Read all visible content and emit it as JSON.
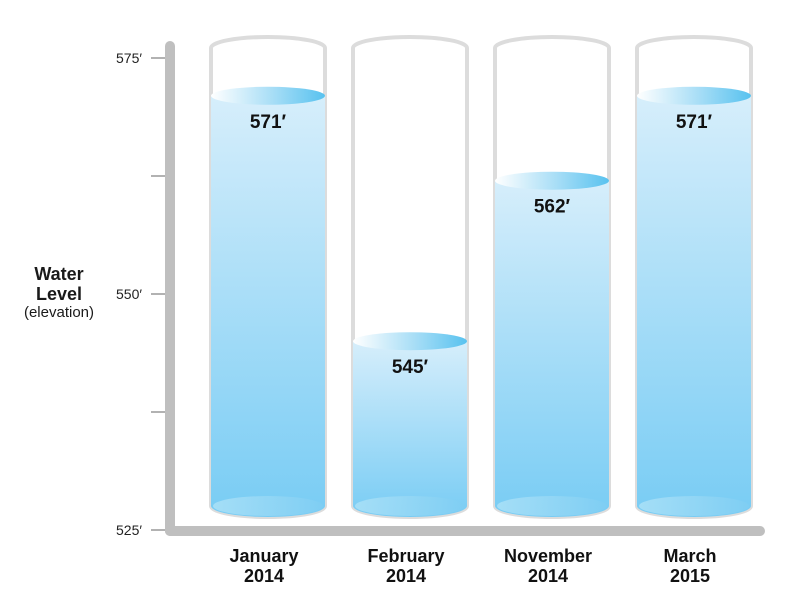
{
  "chart_data": {
    "type": "bar",
    "style": "water-filled cylinders",
    "ylabel": "Water Level",
    "ylabel_sub": "(elevation)",
    "ylim": [
      525,
      575
    ],
    "y_ticks": [
      {
        "value": 525,
        "label": "525′"
      },
      {
        "value": 537.5,
        "label": ""
      },
      {
        "value": 550,
        "label": "550′"
      },
      {
        "value": 562.5,
        "label": ""
      },
      {
        "value": 575,
        "label": "575′"
      }
    ],
    "categories": [
      {
        "line1": "January",
        "line2": "2014"
      },
      {
        "line1": "February",
        "line2": "2014"
      },
      {
        "line1": "November",
        "line2": "2014"
      },
      {
        "line1": "March",
        "line2": "2015"
      }
    ],
    "values": [
      571,
      545,
      562,
      571
    ],
    "value_labels": [
      "571′",
      "545′",
      "562′",
      "571′"
    ],
    "colors": {
      "water_top": "#d6eefb",
      "water_bottom": "#78ccf4",
      "water_surface": "#58c2ef",
      "axis": "#bfbfbf",
      "cylinder_outline": "#dcdcdc"
    }
  }
}
